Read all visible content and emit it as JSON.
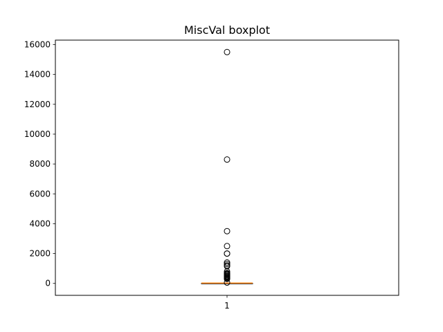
{
  "chart_data": {
    "type": "boxplot",
    "title": "MiscVal boxplot",
    "xlabel": "",
    "ylabel": "",
    "categories": [
      "1"
    ],
    "ylim": [
      -800,
      16300
    ],
    "yticks": [
      0,
      2000,
      4000,
      6000,
      8000,
      10000,
      12000,
      14000,
      16000
    ],
    "ytick_labels": [
      "0",
      "2000",
      "4000",
      "6000",
      "8000",
      "10000",
      "12000",
      "14000",
      "16000"
    ],
    "grid": false,
    "box": {
      "min": 0,
      "q1": 0,
      "median": 0,
      "q3": 0,
      "max": 0
    },
    "outliers": [
      15500,
      8300,
      3500,
      2500,
      2000,
      2000,
      1400,
      1300,
      1200,
      1150,
      800,
      700,
      650,
      600,
      560,
      500,
      480,
      450,
      400,
      350,
      300,
      54
    ],
    "colors": {
      "median": "#ff7f0e",
      "box": "#000000",
      "outlier_edge": "#000000"
    }
  }
}
